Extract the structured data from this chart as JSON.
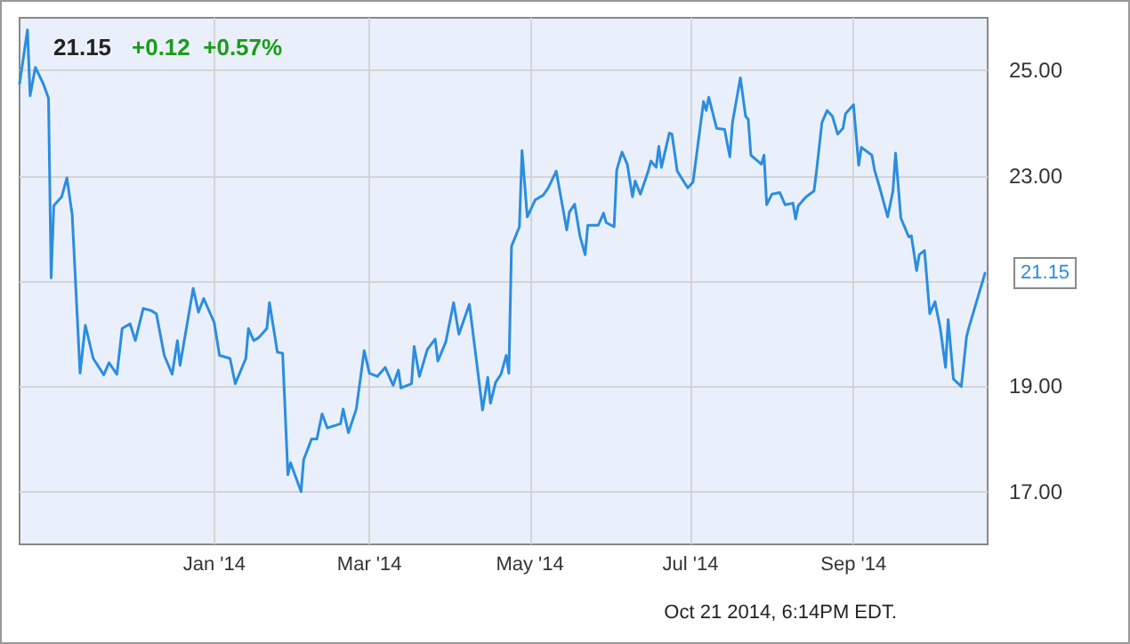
{
  "chart_data": {
    "type": "line",
    "title": "21.15",
    "subtitle": "+0.12  +0.57%",
    "annotations": [
      {
        "text": "21.15",
        "x": "2014-10-21",
        "y": 21.15
      },
      "Oct 21 2014, 6:14PM EDT."
    ],
    "xlim": [
      "2013-10-19",
      "2014-10-22"
    ],
    "xticks": [
      {
        "value": "2014-01-01",
        "label": "Jan '14"
      },
      {
        "value": "2014-03-01",
        "label": "Mar '14"
      },
      {
        "value": "2014-05-01",
        "label": "May '14"
      },
      {
        "value": "2014-07-01",
        "label": "Jul '14"
      },
      {
        "value": "2014-09-01",
        "label": "Sep '14"
      }
    ],
    "ylim": [
      16,
      26
    ],
    "yticks": [
      {
        "value": 17,
        "label": "17.00"
      },
      {
        "value": 19,
        "label": "19.00"
      },
      {
        "value": 21,
        "label": null
      },
      {
        "value": 23,
        "label": "23.00"
      },
      {
        "value": 25,
        "label": "25.00"
      }
    ],
    "grid": true,
    "marker": "none",
    "line_style": "solid",
    "series": [
      {
        "color": "#2b8de0",
        "x": [
          "2013-10-19",
          "2013-10-22",
          "2013-10-23",
          "2013-10-25",
          "2013-10-28",
          "2013-10-30",
          "2013-10-31",
          "2013-11-01",
          "2013-11-04",
          "2013-11-06",
          "2013-11-08",
          "2013-11-11",
          "2013-11-13",
          "2013-11-16",
          "2013-11-20",
          "2013-11-22",
          "2013-11-25",
          "2013-11-27",
          "2013-11-30",
          "2013-12-02",
          "2013-12-05",
          "2013-12-08",
          "2013-12-10",
          "2013-12-13",
          "2013-12-16",
          "2013-12-18",
          "2013-12-19",
          "2013-12-24",
          "2013-12-26",
          "2013-12-28",
          "2014-01-01",
          "2014-01-03",
          "2014-01-07",
          "2014-01-09",
          "2014-01-13",
          "2014-01-14",
          "2014-01-16",
          "2014-01-18",
          "2014-01-21",
          "2014-01-22",
          "2014-01-25",
          "2014-01-27",
          "2014-01-29",
          "2014-01-30",
          "2014-02-03",
          "2014-02-04",
          "2014-02-07",
          "2014-02-09",
          "2014-02-11",
          "2014-02-13",
          "2014-02-18",
          "2014-02-19",
          "2014-02-21",
          "2014-02-24",
          "2014-02-27",
          "2014-03-01",
          "2014-03-04",
          "2014-03-07",
          "2014-03-10",
          "2014-03-12",
          "2014-03-13",
          "2014-03-17",
          "2014-03-18",
          "2014-03-20",
          "2014-03-23",
          "2014-03-26",
          "2014-03-27",
          "2014-03-30",
          "2014-04-02",
          "2014-04-04",
          "2014-04-08",
          "2014-04-11",
          "2014-04-13",
          "2014-04-15",
          "2014-04-16",
          "2014-04-18",
          "2014-04-20",
          "2014-04-22",
          "2014-04-23",
          "2014-04-24",
          "2014-04-27",
          "2014-04-28",
          "2014-04-30",
          "2014-05-03",
          "2014-05-06",
          "2014-05-08",
          "2014-05-11",
          "2014-05-15",
          "2014-05-16",
          "2014-05-18",
          "2014-05-20",
          "2014-05-22",
          "2014-05-23",
          "2014-05-27",
          "2014-05-29",
          "2014-05-30",
          "2014-06-02",
          "2014-06-03",
          "2014-06-05",
          "2014-06-07",
          "2014-06-09",
          "2014-06-10",
          "2014-06-12",
          "2014-06-15",
          "2014-06-16",
          "2014-06-18",
          "2014-06-19",
          "2014-06-20",
          "2014-06-23",
          "2014-06-24",
          "2014-06-26",
          "2014-06-30",
          "2014-07-02",
          "2014-07-06",
          "2014-07-07",
          "2014-07-08",
          "2014-07-11",
          "2014-07-14",
          "2014-07-16",
          "2014-07-17",
          "2014-07-20",
          "2014-07-22",
          "2014-07-23",
          "2014-07-24",
          "2014-07-28",
          "2014-07-29",
          "2014-07-30",
          "2014-08-01",
          "2014-08-04",
          "2014-08-06",
          "2014-08-09",
          "2014-08-10",
          "2014-08-11",
          "2014-08-14",
          "2014-08-17",
          "2014-08-18",
          "2014-08-20",
          "2014-08-22",
          "2014-08-24",
          "2014-08-26",
          "2014-08-28",
          "2014-08-29",
          "2014-09-01",
          "2014-09-03",
          "2014-09-04",
          "2014-09-08",
          "2014-09-09",
          "2014-09-11",
          "2014-09-14",
          "2014-09-16",
          "2014-09-17",
          "2014-09-19",
          "2014-09-22",
          "2014-09-23",
          "2014-09-25",
          "2014-09-26",
          "2014-09-28",
          "2014-09-30",
          "2014-10-02",
          "2014-10-04",
          "2014-10-06",
          "2014-10-07",
          "2014-10-09",
          "2014-10-12",
          "2014-10-14",
          "2014-10-15",
          "2014-10-21"
        ],
        "values": [
          24.75,
          25.77,
          24.52,
          25.06,
          24.75,
          24.47,
          21.06,
          22.43,
          22.6,
          22.96,
          22.26,
          19.25,
          20.16,
          19.53,
          19.22,
          19.45,
          19.23,
          20.1,
          20.19,
          19.87,
          20.48,
          20.44,
          20.38,
          19.59,
          19.23,
          19.87,
          19.4,
          20.86,
          20.41,
          20.67,
          20.21,
          19.59,
          19.53,
          19.05,
          19.53,
          20.1,
          19.87,
          19.93,
          20.1,
          20.59,
          19.65,
          19.63,
          17.32,
          17.55,
          17.0,
          17.61,
          18.0,
          18.0,
          18.48,
          18.21,
          18.29,
          18.57,
          18.12,
          18.57,
          19.68,
          19.25,
          19.19,
          19.36,
          19.02,
          19.31,
          18.97,
          19.05,
          19.76,
          19.19,
          19.7,
          19.9,
          19.48,
          19.84,
          20.59,
          19.99,
          20.56,
          19.36,
          18.55,
          19.17,
          18.68,
          19.08,
          19.23,
          19.59,
          19.25,
          21.66,
          22.03,
          23.48,
          22.22,
          22.54,
          22.63,
          22.77,
          23.09,
          21.97,
          22.31,
          22.46,
          21.86,
          21.5,
          22.06,
          22.06,
          22.29,
          22.11,
          22.03,
          23.11,
          23.45,
          23.22,
          22.6,
          22.9,
          22.65,
          23.09,
          23.28,
          23.16,
          23.56,
          23.16,
          23.81,
          23.79,
          23.09,
          22.77,
          22.88,
          24.41,
          24.24,
          24.49,
          23.9,
          23.88,
          23.36,
          24.01,
          24.86,
          24.13,
          24.07,
          23.39,
          23.22,
          23.39,
          22.45,
          22.65,
          22.68,
          22.45,
          22.48,
          22.18,
          22.43,
          22.6,
          22.71,
          23.11,
          24.01,
          24.24,
          24.13,
          23.79,
          23.9,
          24.18,
          24.35,
          23.2,
          23.54,
          23.39,
          23.11,
          22.77,
          22.22,
          22.71,
          23.43,
          22.2,
          21.84,
          21.86,
          21.2,
          21.5,
          21.58,
          20.38,
          20.61,
          20.1,
          19.36,
          20.27,
          19.14,
          19.0,
          19.95,
          20.14,
          21.15
        ]
      }
    ]
  }
}
